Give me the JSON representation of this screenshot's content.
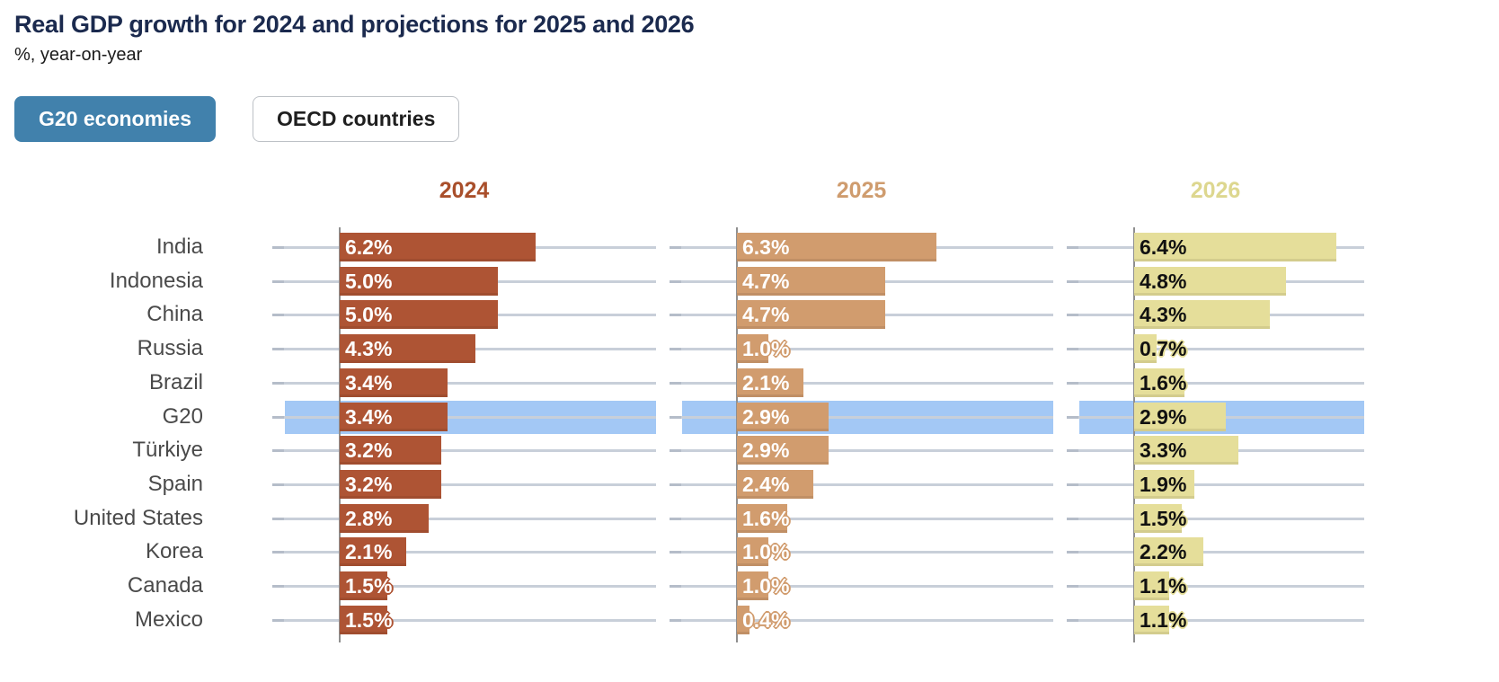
{
  "title": "Real GDP growth for 2024 and projections for 2025 and 2026",
  "title_color": "#1b2a4e",
  "subtitle": "%, year-on-year",
  "toggle": {
    "g20_label": "G20 economies",
    "oecd_label": "OECD countries",
    "active": "G20 economies",
    "active_bg": "#4181ac"
  },
  "chart_data": {
    "type": "bar",
    "orientation": "horizontal",
    "title": "Real GDP growth for 2024 and projections for 2025 and 2026",
    "subtitle": "%, year-on-year",
    "value_suffix": "%",
    "xmax": 10,
    "grid": true,
    "gridline_color": "#c8cfd9",
    "axis_color": "#8f8f8f",
    "category_label_color": "#4a4a4a",
    "highlight_category": "G20",
    "highlight_color": "#a3c8f5",
    "categories": [
      "India",
      "Indonesia",
      "China",
      "Russia",
      "Brazil",
      "G20",
      "Türkiye",
      "Spain",
      "United States",
      "Korea",
      "Canada",
      "Mexico"
    ],
    "series": [
      {
        "name": "2024",
        "bar_color": "#ae5434",
        "header_color": "#a94f2b",
        "value_text_color": "#ffffff",
        "values": [
          6.2,
          5.0,
          5.0,
          4.3,
          3.4,
          3.4,
          3.2,
          3.2,
          2.8,
          2.1,
          1.5,
          1.5
        ]
      },
      {
        "name": "2025",
        "bar_color": "#d19c6e",
        "header_color": "#cf9c6e",
        "value_text_color": "#ffffff",
        "values": [
          6.3,
          4.7,
          4.7,
          1.0,
          2.1,
          2.9,
          2.9,
          2.4,
          1.6,
          1.0,
          1.0,
          0.4
        ]
      },
      {
        "name": "2026",
        "bar_color": "#e5de9a",
        "header_color": "#ddd78f",
        "value_text_color": "#111111",
        "values": [
          6.4,
          4.8,
          4.3,
          0.7,
          1.6,
          2.9,
          3.3,
          1.9,
          1.5,
          2.2,
          1.1,
          1.1
        ]
      }
    ]
  }
}
